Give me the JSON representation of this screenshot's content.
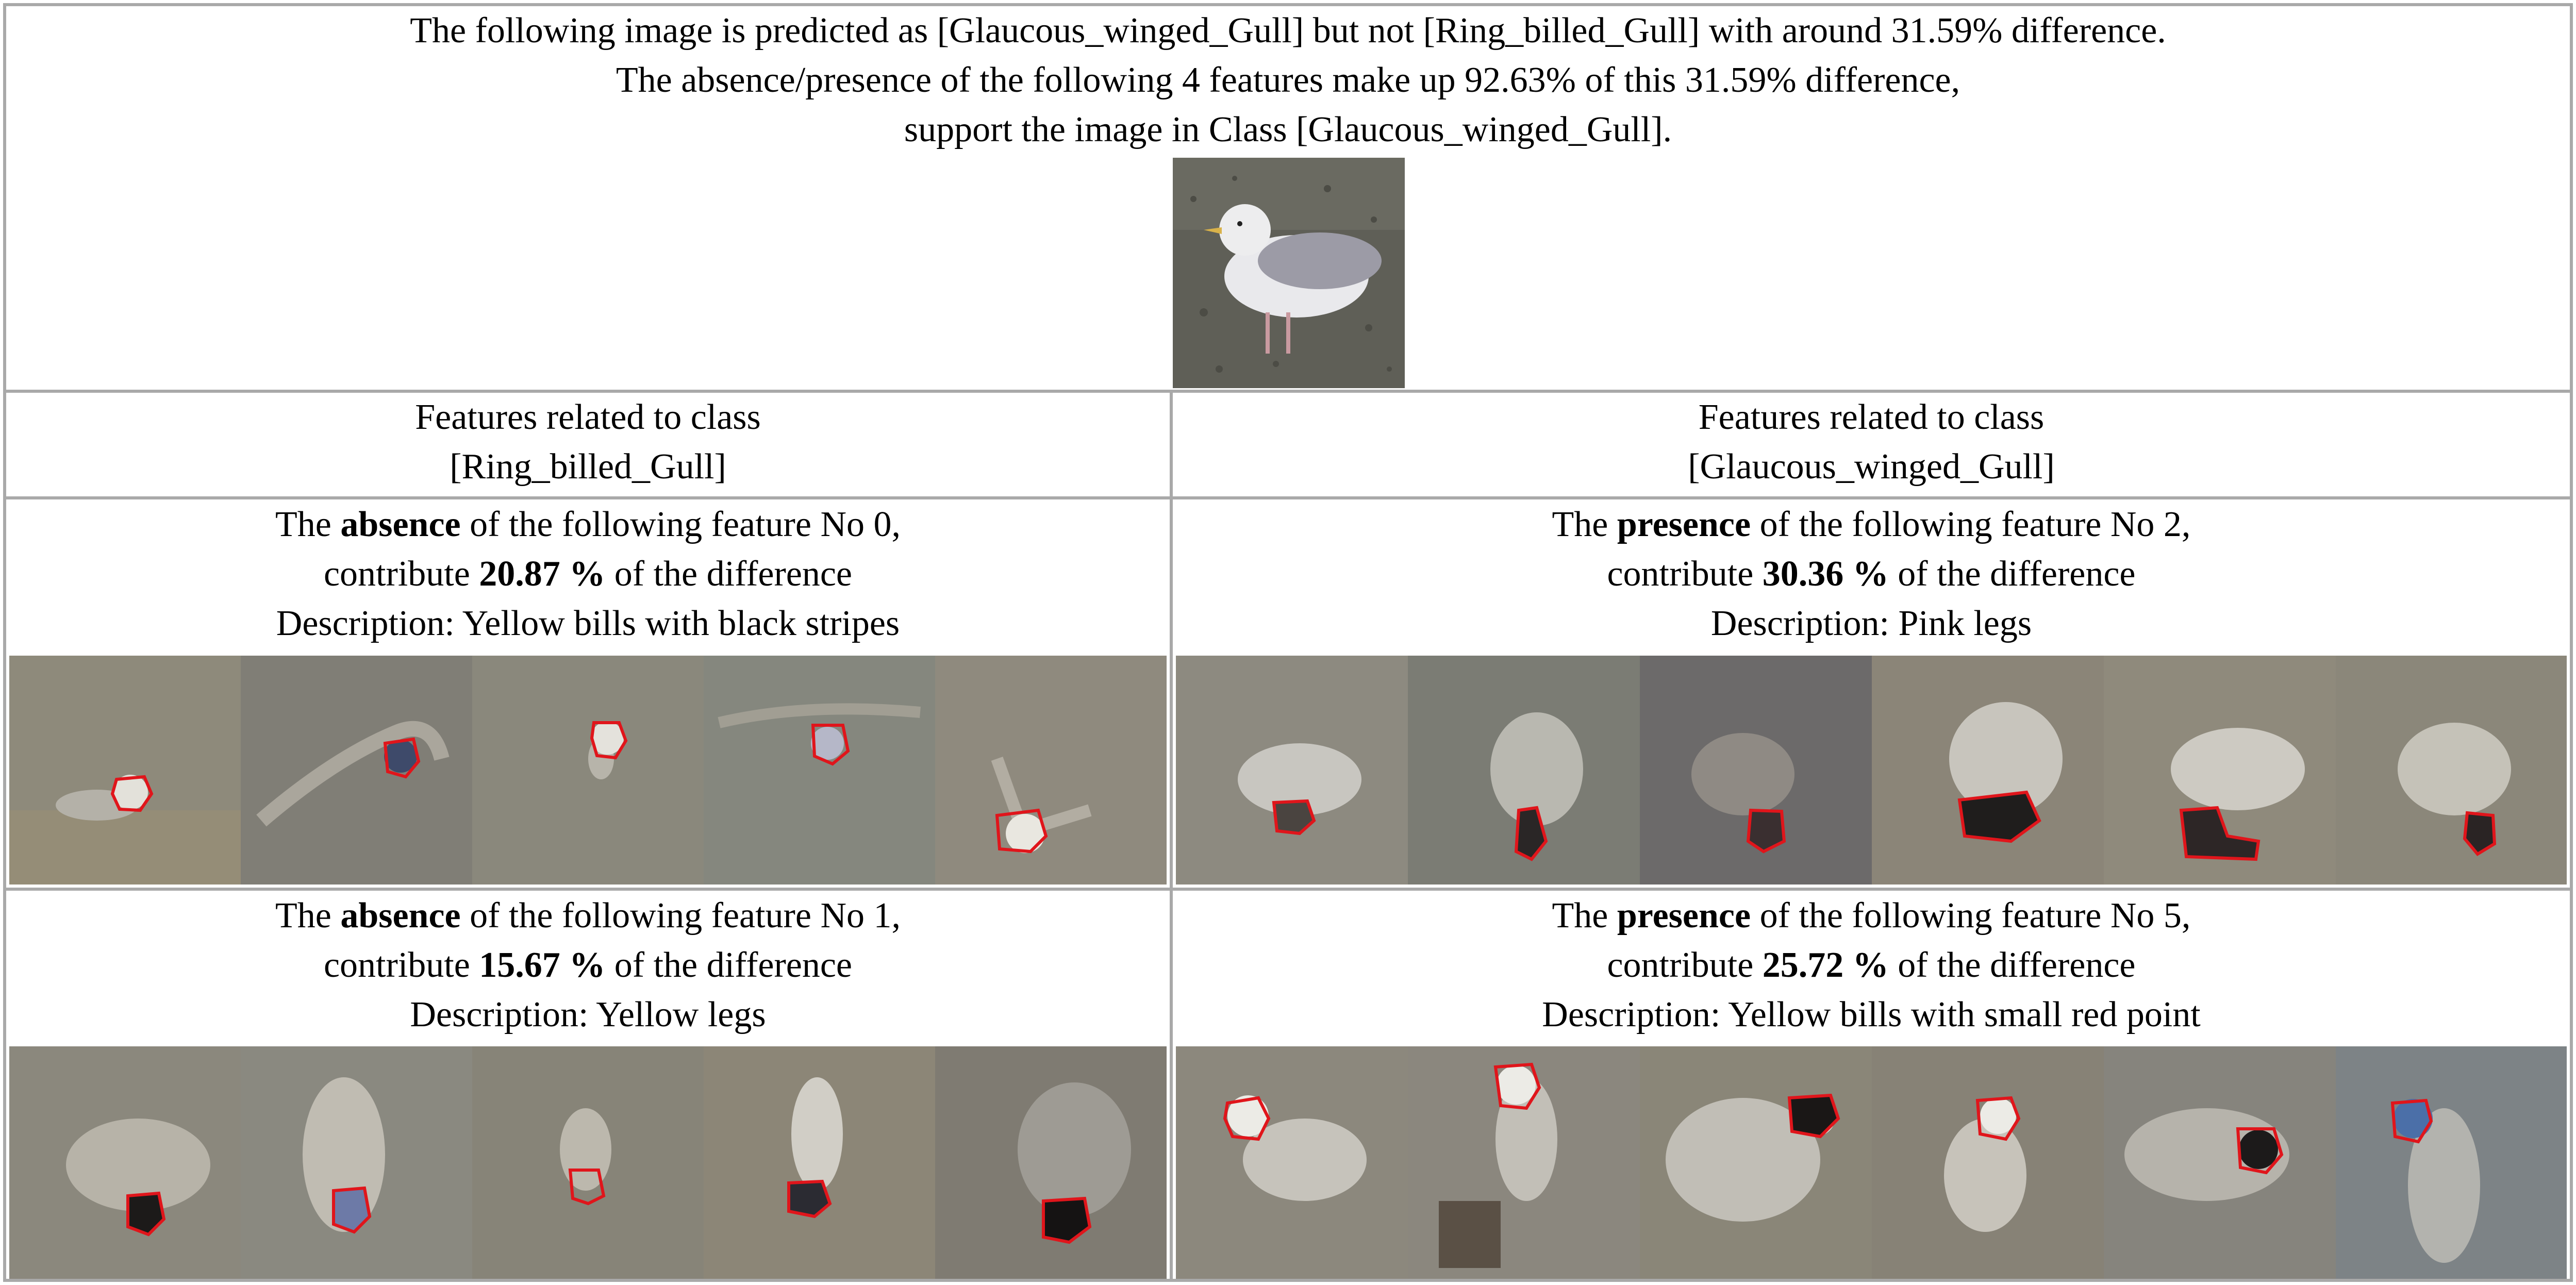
{
  "header": {
    "line1": "The following image is predicted as [Glaucous_winged_Gull] but not [Ring_billed_Gull] with around 31.59% difference.",
    "line2": "The absence/presence of the following 4 features make up 92.63% of this 31.59% difference,",
    "line3": "support the image in Class [Glaucous_winged_Gull]."
  },
  "columns": {
    "left": {
      "line1": "Features related to class",
      "line2": "[Ring_billed_Gull]"
    },
    "right": {
      "line1": "Features related to class",
      "line2": "[Glaucous_winged_Gull]"
    }
  },
  "features": [
    {
      "pre": "The ",
      "kind": "absence",
      "post": " of the following feature No 0,",
      "contrib_pre": "contribute ",
      "pct": "20.87 %",
      "contrib_post": " of the difference",
      "description": "Description: Yellow bills with black stripes"
    },
    {
      "pre": "The ",
      "kind": "presence",
      "post": " of the following feature No 2,",
      "contrib_pre": "contribute ",
      "pct": "30.36 %",
      "contrib_post": " of the difference",
      "description": "Description: Pink legs"
    },
    {
      "pre": "The ",
      "kind": "absence",
      "post": " of the following feature No 1,",
      "contrib_pre": "contribute ",
      "pct": "15.67 %",
      "contrib_post": " of the difference",
      "description": "Description: Yellow legs"
    },
    {
      "pre": "The ",
      "kind": "presence",
      "post": " of the following feature No 5,",
      "contrib_pre": "contribute ",
      "pct": "25.72 %",
      "contrib_post": " of the difference",
      "description": "Description: Yellow bills with small red point"
    }
  ],
  "colors": {
    "border": "#a9a9a9",
    "highlight": "#e0151b",
    "faded_bg": "#8c8574"
  }
}
